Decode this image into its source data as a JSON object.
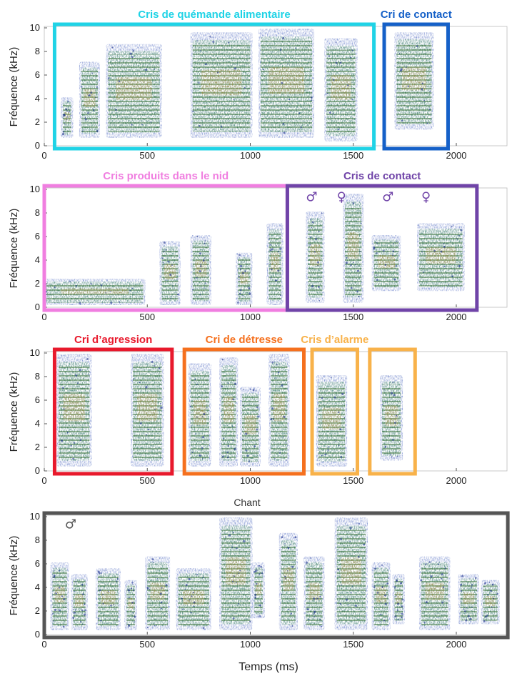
{
  "figure": {
    "x_axis_label": "Temps (ms)",
    "y_axis_label": "Fréquence (kHz)",
    "x_ticks": [
      0,
      500,
      1000,
      1500,
      2000
    ],
    "y_ticks": [
      0,
      2,
      4,
      6,
      8,
      10
    ],
    "male_symbol": "♂",
    "female_symbol": "♀"
  },
  "colors": {
    "cyan": "#1fd3e6",
    "blue": "#1560c8",
    "pink": "#f07ee0",
    "purple": "#7044a8",
    "red": "#e8192c",
    "orange": "#f5701e",
    "light_orange": "#f8b24a",
    "gray": "#555555"
  },
  "chart_data": [
    {
      "type": "spectrogram",
      "panel": 1,
      "x_range_ms": [
        0,
        2250
      ],
      "y_range_khz": [
        0,
        10
      ],
      "xlabel": "",
      "ylabel": "Fréquence (kHz)",
      "segments": [
        {
          "label": "Cris de quémande alimentaire",
          "color": "cyan",
          "x_start_ms": 50,
          "x_end_ms": 1600
        },
        {
          "label": "Cri de contact",
          "color": "blue",
          "x_start_ms": 1650,
          "x_end_ms": 1960
        }
      ],
      "calls": [
        {
          "start_ms": 90,
          "end_ms": 130,
          "fmin_khz": 0.8,
          "fmax_khz": 4.0
        },
        {
          "start_ms": 180,
          "end_ms": 260,
          "fmin_khz": 0.8,
          "fmax_khz": 7.0
        },
        {
          "start_ms": 310,
          "end_ms": 560,
          "fmin_khz": 0.8,
          "fmax_khz": 8.5
        },
        {
          "start_ms": 720,
          "end_ms": 1000,
          "fmin_khz": 0.8,
          "fmax_khz": 9.5
        },
        {
          "start_ms": 1050,
          "end_ms": 1300,
          "fmin_khz": 0.8,
          "fmax_khz": 9.8
        },
        {
          "start_ms": 1370,
          "end_ms": 1510,
          "fmin_khz": 0.5,
          "fmax_khz": 9.0
        },
        {
          "start_ms": 1710,
          "end_ms": 1880,
          "fmin_khz": 1.5,
          "fmax_khz": 9.5
        }
      ]
    },
    {
      "type": "spectrogram",
      "panel": 2,
      "x_range_ms": [
        0,
        2250
      ],
      "y_range_khz": [
        0,
        10
      ],
      "xlabel": "",
      "ylabel": "Fréquence (kHz)",
      "segments": [
        {
          "label": "Cris produits dans le nid",
          "color": "pink",
          "x_start_ms": 0,
          "x_end_ms": 1180
        },
        {
          "label": "Cris de contact",
          "color": "purple",
          "x_start_ms": 1180,
          "x_end_ms": 2100
        }
      ],
      "calls": [
        {
          "start_ms": 10,
          "end_ms": 480,
          "fmin_khz": 0.3,
          "fmax_khz": 2.3
        },
        {
          "start_ms": 570,
          "end_ms": 650,
          "fmin_khz": 0.3,
          "fmax_khz": 5.5
        },
        {
          "start_ms": 720,
          "end_ms": 800,
          "fmin_khz": 0.3,
          "fmax_khz": 6.0
        },
        {
          "start_ms": 940,
          "end_ms": 1000,
          "fmin_khz": 0.3,
          "fmax_khz": 4.5
        },
        {
          "start_ms": 1090,
          "end_ms": 1150,
          "fmin_khz": 0.3,
          "fmax_khz": 7.0
        },
        {
          "start_ms": 1280,
          "end_ms": 1350,
          "fmin_khz": 0.5,
          "fmax_khz": 8.0
        },
        {
          "start_ms": 1460,
          "end_ms": 1540,
          "fmin_khz": 0.5,
          "fmax_khz": 9.5
        },
        {
          "start_ms": 1600,
          "end_ms": 1720,
          "fmin_khz": 1.5,
          "fmax_khz": 6.0
        },
        {
          "start_ms": 1820,
          "end_ms": 2030,
          "fmin_khz": 1.5,
          "fmax_khz": 7.0
        }
      ],
      "markers": [
        {
          "symbol": "male",
          "x_ms": 1270,
          "y_khz": 9.0
        },
        {
          "symbol": "female",
          "x_ms": 1420,
          "y_khz": 9.0
        },
        {
          "symbol": "male",
          "x_ms": 1640,
          "y_khz": 9.0
        },
        {
          "symbol": "female",
          "x_ms": 1830,
          "y_khz": 9.0
        }
      ]
    },
    {
      "type": "spectrogram",
      "panel": 3,
      "x_range_ms": [
        0,
        2250
      ],
      "y_range_khz": [
        0,
        10
      ],
      "xlabel": "",
      "ylabel": "Fréquence (kHz)",
      "segments": [
        {
          "label": "Cri d’agression",
          "color": "red",
          "x_start_ms": 50,
          "x_end_ms": 620
        },
        {
          "label": "Cri de détresse",
          "color": "orange",
          "x_start_ms": 680,
          "x_end_ms": 1260
        },
        {
          "label": "Cris d’alarme",
          "color": "light_orange",
          "x_start_ms": 1300,
          "x_end_ms": 1520
        },
        {
          "label": "",
          "color": "light_orange",
          "x_start_ms": 1580,
          "x_end_ms": 1800
        }
      ],
      "calls": [
        {
          "start_ms": 70,
          "end_ms": 220,
          "fmin_khz": 0.5,
          "fmax_khz": 9.8
        },
        {
          "start_ms": 430,
          "end_ms": 570,
          "fmin_khz": 0.5,
          "fmax_khz": 9.8
        },
        {
          "start_ms": 710,
          "end_ms": 800,
          "fmin_khz": 0.5,
          "fmax_khz": 9.0
        },
        {
          "start_ms": 860,
          "end_ms": 930,
          "fmin_khz": 0.5,
          "fmax_khz": 9.5
        },
        {
          "start_ms": 960,
          "end_ms": 1040,
          "fmin_khz": 0.5,
          "fmax_khz": 7.0
        },
        {
          "start_ms": 1100,
          "end_ms": 1180,
          "fmin_khz": 0.5,
          "fmax_khz": 9.8
        },
        {
          "start_ms": 1330,
          "end_ms": 1460,
          "fmin_khz": 0.5,
          "fmax_khz": 8.0
        },
        {
          "start_ms": 1640,
          "end_ms": 1730,
          "fmin_khz": 1.0,
          "fmax_khz": 8.0
        }
      ]
    },
    {
      "type": "spectrogram",
      "panel": 4,
      "title": "Chant",
      "x_range_ms": [
        0,
        2250
      ],
      "y_range_khz": [
        0,
        10
      ],
      "xlabel": "Temps (ms)",
      "ylabel": "Fréquence (kHz)",
      "segments": [
        {
          "label": "",
          "color": "gray",
          "x_start_ms": 0,
          "x_end_ms": 2250
        }
      ],
      "calls": [
        {
          "start_ms": 40,
          "end_ms": 110,
          "fmin_khz": 0.5,
          "fmax_khz": 6.0
        },
        {
          "start_ms": 140,
          "end_ms": 200,
          "fmin_khz": 0.5,
          "fmax_khz": 5.0
        },
        {
          "start_ms": 260,
          "end_ms": 360,
          "fmin_khz": 0.5,
          "fmax_khz": 5.5
        },
        {
          "start_ms": 400,
          "end_ms": 440,
          "fmin_khz": 0.5,
          "fmax_khz": 4.5
        },
        {
          "start_ms": 500,
          "end_ms": 600,
          "fmin_khz": 0.5,
          "fmax_khz": 6.5
        },
        {
          "start_ms": 650,
          "end_ms": 800,
          "fmin_khz": 0.5,
          "fmax_khz": 5.5
        },
        {
          "start_ms": 860,
          "end_ms": 1000,
          "fmin_khz": 0.5,
          "fmax_khz": 9.8
        },
        {
          "start_ms": 1020,
          "end_ms": 1060,
          "fmin_khz": 1.5,
          "fmax_khz": 6.0
        },
        {
          "start_ms": 1150,
          "end_ms": 1220,
          "fmin_khz": 0.5,
          "fmax_khz": 8.5
        },
        {
          "start_ms": 1270,
          "end_ms": 1350,
          "fmin_khz": 0.5,
          "fmax_khz": 6.5
        },
        {
          "start_ms": 1420,
          "end_ms": 1560,
          "fmin_khz": 0.5,
          "fmax_khz": 9.8
        },
        {
          "start_ms": 1600,
          "end_ms": 1670,
          "fmin_khz": 0.5,
          "fmax_khz": 6.0
        },
        {
          "start_ms": 1700,
          "end_ms": 1740,
          "fmin_khz": 1.0,
          "fmax_khz": 5.0
        },
        {
          "start_ms": 1830,
          "end_ms": 1960,
          "fmin_khz": 0.5,
          "fmax_khz": 6.5
        },
        {
          "start_ms": 2020,
          "end_ms": 2100,
          "fmin_khz": 1.0,
          "fmax_khz": 5.0
        },
        {
          "start_ms": 2130,
          "end_ms": 2200,
          "fmin_khz": 1.0,
          "fmax_khz": 4.5
        }
      ],
      "markers": [
        {
          "symbol": "male",
          "x_ms": 100,
          "y_khz": 9.0
        }
      ]
    }
  ]
}
